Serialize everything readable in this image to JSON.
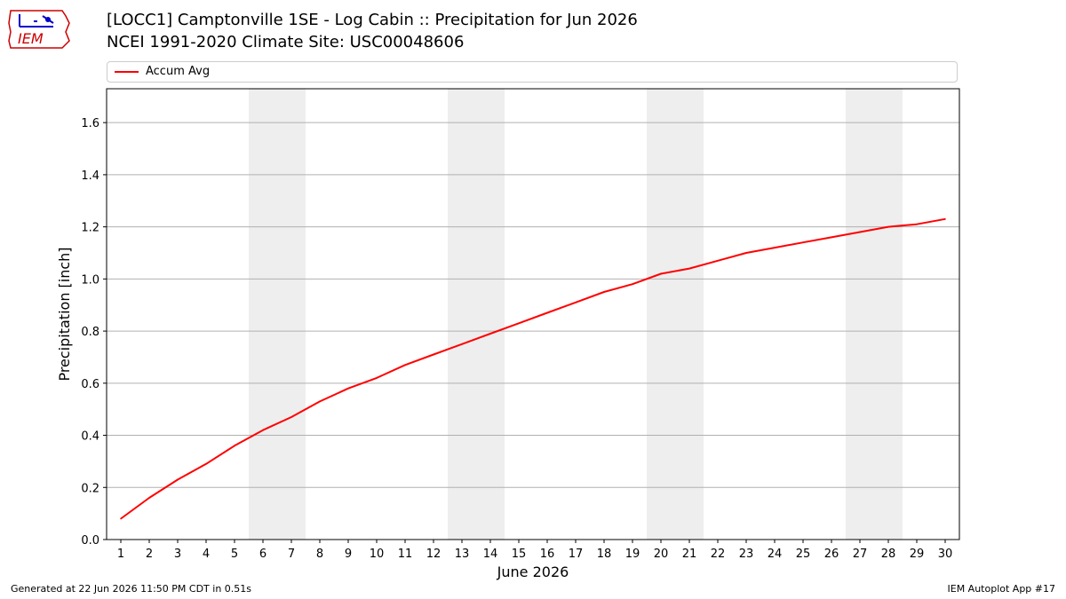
{
  "header": {
    "logo_text": "IEM",
    "title_line1": "[LOCC1] Camptonville 1SE - Log Cabin :: Precipitation for Jun 2026",
    "title_line2": "NCEI 1991-2020 Climate Site: USC00048606"
  },
  "footer": {
    "generated": "Generated at 22 Jun 2026 11:50 PM CDT in 0.51s",
    "app": "IEM Autoplot App #17"
  },
  "colors": {
    "series": "#ff0000",
    "weekend_band": "#eeeeee",
    "grid": "#b0b0b0",
    "logo": "#cc0000"
  },
  "chart_data": {
    "type": "line",
    "title": "[LOCC1] Camptonville 1SE - Log Cabin :: Precipitation for Jun 2026",
    "subtitle": "NCEI 1991-2020 Climate Site: USC00048606",
    "xlabel": "June 2026",
    "ylabel": "Precipitation [inch]",
    "x": [
      1,
      2,
      3,
      4,
      5,
      6,
      7,
      8,
      9,
      10,
      11,
      12,
      13,
      14,
      15,
      16,
      17,
      18,
      19,
      20,
      21,
      22,
      23,
      24,
      25,
      26,
      27,
      28,
      29,
      30
    ],
    "xlim": [
      0.5,
      30.5
    ],
    "ylim": [
      0,
      1.73
    ],
    "yticks": [
      0.0,
      0.2,
      0.4,
      0.6,
      0.8,
      1.0,
      1.2,
      1.4,
      1.6
    ],
    "ytick_labels": [
      "0.0",
      "0.2",
      "0.4",
      "0.6",
      "0.8",
      "1.0",
      "1.2",
      "1.4",
      "1.6"
    ],
    "grid": "y",
    "legend_position": "top",
    "shaded_weekends": [
      [
        6,
        7
      ],
      [
        13,
        14
      ],
      [
        20,
        21
      ],
      [
        27,
        28
      ]
    ],
    "series": [
      {
        "name": "Accum Avg",
        "color": "#ff0000",
        "values": [
          0.08,
          0.16,
          0.23,
          0.29,
          0.36,
          0.42,
          0.47,
          0.53,
          0.58,
          0.62,
          0.67,
          0.71,
          0.75,
          0.79,
          0.83,
          0.87,
          0.91,
          0.95,
          0.98,
          1.02,
          1.04,
          1.07,
          1.1,
          1.12,
          1.14,
          1.16,
          1.18,
          1.2,
          1.21,
          1.23
        ]
      }
    ]
  }
}
